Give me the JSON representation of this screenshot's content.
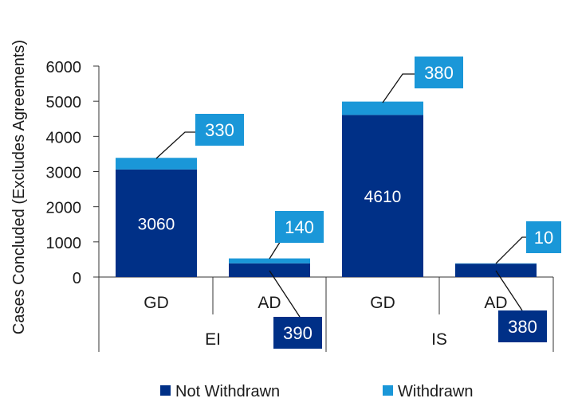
{
  "chart_data": {
    "type": "bar",
    "stacked": true,
    "ylabel": "Cases Concluded (Excludes Agreements)",
    "ylim": [
      0,
      6000
    ],
    "yticks": [
      0,
      1000,
      2000,
      3000,
      4000,
      5000,
      6000
    ],
    "grid": false,
    "legend_position": "bottom",
    "groups": [
      {
        "name": "EI",
        "categories": [
          "GD",
          "AD"
        ]
      },
      {
        "name": "IS",
        "categories": [
          "GD",
          "AD"
        ]
      }
    ],
    "series": [
      {
        "name": "Not Withdrawn",
        "color": "#003087",
        "values": [
          3060,
          390,
          4610,
          380
        ]
      },
      {
        "name": "Withdrawn",
        "color": "#1a97d8",
        "values": [
          330,
          140,
          380,
          10
        ]
      }
    ],
    "labels": {
      "not_withdrawn": [
        "3060",
        "390",
        "4610",
        "380"
      ],
      "withdrawn": [
        "330",
        "140",
        "380",
        "10"
      ]
    }
  }
}
